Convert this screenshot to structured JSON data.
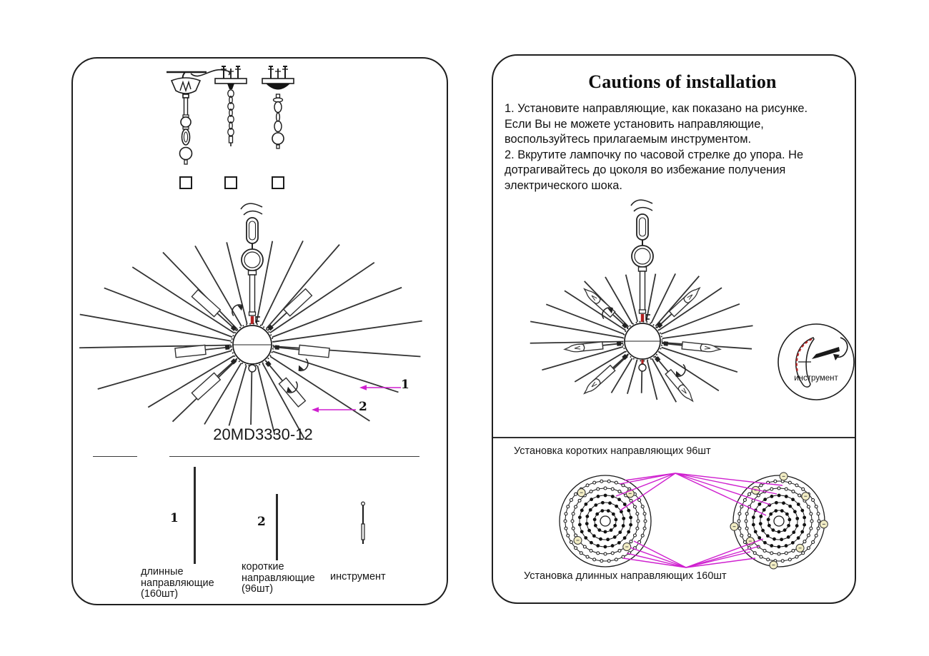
{
  "left_panel": {
    "model": "20MD3330-12",
    "callout_1": "1",
    "callout_2": "2",
    "parts": [
      {
        "num": "1",
        "lines": [
          "длинные",
          "направляющие",
          "(160шт)"
        ]
      },
      {
        "num": "2",
        "lines": [
          "короткие",
          "направляющие",
          "(96шт)"
        ]
      },
      {
        "num": "",
        "lines": [
          "инструмент"
        ]
      }
    ]
  },
  "right_panel": {
    "title": "Cautions of installation",
    "instructions": [
      "1. Установите направляющие, как показано на рисунке.",
      "Если Вы не можете установить направляющие,",
      "воспользуйтесь прилагаемым инструментом.",
      "2. Вкрутите лампочку по часовой стрелке до упора. Не",
      "дотрагивайтесь до цоколя во избежание получения",
      "электрического шока."
    ],
    "tool_label": "инструмент",
    "caption_short": "Установка коротких направляющих 96шт",
    "caption_long": "Установка длинных направляющих 160шт"
  },
  "colors": {
    "ink": "#1f1f1f",
    "magenta": "#cf1fcf",
    "red": "#b22222",
    "bead_yellow": "#f2edc4"
  }
}
